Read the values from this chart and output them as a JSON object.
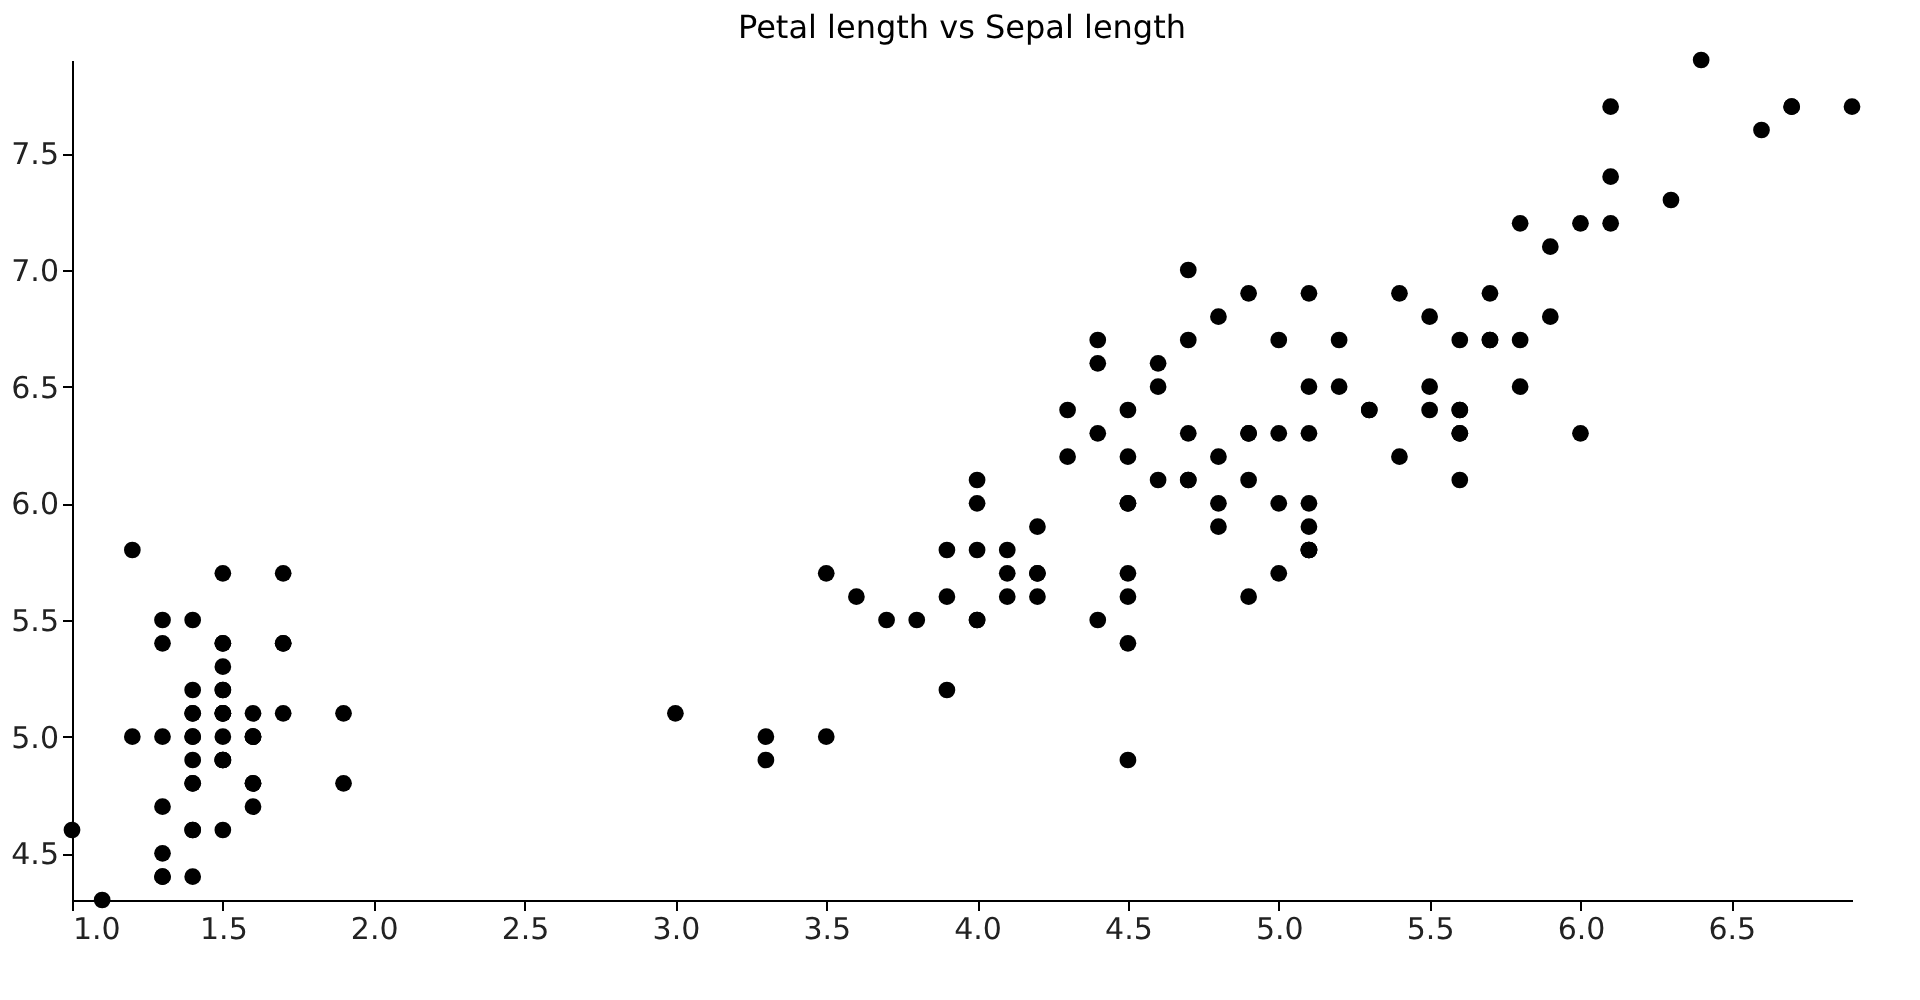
{
  "chart_data": {
    "type": "scatter",
    "title": "Petal length vs Sepal length",
    "x": [
      1.4,
      1.4,
      1.3,
      1.5,
      1.4,
      1.7,
      1.4,
      1.5,
      1.4,
      1.5,
      1.5,
      1.6,
      1.4,
      1.1,
      1.2,
      1.5,
      1.3,
      1.4,
      1.7,
      1.5,
      1.7,
      1.5,
      1.0,
      1.7,
      1.9,
      1.6,
      1.6,
      1.5,
      1.4,
      1.6,
      1.6,
      1.5,
      1.5,
      1.4,
      1.5,
      1.2,
      1.3,
      1.5,
      1.3,
      1.5,
      1.3,
      1.3,
      1.3,
      1.6,
      1.9,
      1.4,
      1.6,
      1.4,
      1.5,
      1.4,
      4.7,
      4.5,
      4.9,
      4.0,
      4.6,
      4.5,
      4.7,
      3.3,
      4.6,
      3.9,
      3.5,
      4.2,
      4.0,
      4.7,
      3.6,
      4.4,
      4.5,
      4.1,
      4.5,
      3.9,
      4.8,
      4.0,
      4.9,
      4.7,
      4.3,
      4.4,
      4.8,
      5.0,
      4.5,
      3.5,
      3.8,
      3.7,
      3.9,
      5.1,
      4.5,
      4.5,
      4.7,
      4.4,
      4.1,
      4.0,
      4.4,
      4.6,
      4.0,
      3.3,
      4.2,
      4.2,
      4.2,
      4.3,
      3.0,
      4.1,
      6.0,
      5.1,
      5.9,
      5.6,
      5.8,
      6.6,
      4.5,
      6.3,
      5.8,
      6.1,
      5.1,
      5.3,
      5.5,
      5.0,
      5.1,
      5.3,
      5.5,
      6.7,
      6.9,
      5.0,
      5.7,
      4.9,
      6.7,
      4.9,
      5.7,
      6.0,
      4.8,
      4.9,
      5.6,
      5.8,
      6.1,
      6.4,
      5.6,
      5.1,
      5.6,
      6.1,
      5.6,
      5.5,
      4.8,
      5.4,
      5.6,
      5.1,
      5.1,
      5.9,
      5.7,
      5.2,
      5.0,
      5.2,
      5.4,
      5.1
    ],
    "values": [
      5.1,
      4.9,
      4.7,
      4.6,
      5.0,
      5.4,
      4.6,
      5.0,
      4.4,
      4.9,
      5.4,
      4.8,
      4.8,
      4.3,
      5.8,
      5.7,
      5.4,
      5.1,
      5.7,
      5.1,
      5.4,
      5.1,
      4.6,
      5.1,
      4.8,
      5.0,
      5.0,
      5.2,
      5.2,
      4.7,
      4.8,
      5.4,
      5.2,
      5.5,
      4.9,
      5.0,
      5.5,
      4.9,
      4.4,
      5.1,
      5.0,
      4.5,
      4.4,
      5.0,
      5.1,
      4.8,
      5.1,
      4.6,
      5.3,
      5.0,
      7.0,
      6.4,
      6.9,
      5.5,
      6.5,
      5.7,
      6.3,
      4.9,
      6.6,
      5.2,
      5.0,
      5.9,
      6.0,
      6.1,
      5.6,
      6.7,
      5.6,
      5.8,
      6.2,
      5.6,
      5.9,
      6.1,
      6.3,
      6.1,
      6.4,
      6.6,
      6.8,
      6.7,
      6.0,
      5.7,
      5.5,
      5.5,
      5.8,
      6.0,
      5.4,
      6.0,
      6.7,
      6.3,
      5.6,
      5.5,
      5.5,
      6.1,
      5.8,
      5.0,
      5.6,
      5.7,
      5.7,
      6.2,
      5.1,
      5.7,
      6.3,
      5.8,
      7.1,
      6.3,
      6.5,
      7.6,
      4.9,
      7.3,
      6.7,
      7.2,
      6.5,
      6.4,
      6.8,
      5.7,
      5.8,
      6.4,
      6.5,
      7.7,
      7.7,
      6.0,
      6.9,
      5.6,
      7.7,
      6.3,
      6.7,
      7.2,
      6.2,
      6.1,
      6.4,
      7.2,
      7.4,
      7.9,
      6.4,
      6.3,
      6.1,
      7.7,
      6.3,
      6.4,
      6.0,
      6.9,
      6.7,
      6.9,
      5.8,
      6.8,
      6.7,
      6.7,
      6.3,
      6.5,
      6.2,
      5.9
    ],
    "color": "#000000",
    "marker": "circle",
    "grid": false,
    "xlim": [
      1.0,
      6.9
    ],
    "xticks": [
      {
        "value": 1,
        "label": "1.0"
      },
      1.5,
      {
        "value": 2,
        "label": "2.0"
      },
      2.5,
      {
        "value": 3,
        "label": "3.0"
      },
      3.5,
      {
        "value": 4,
        "label": "4.0"
      },
      4.5,
      {
        "value": 5,
        "label": "5.0"
      },
      5.5,
      {
        "value": 6,
        "label": "6.0"
      },
      6.5
    ],
    "ylim": [
      4.3,
      7.9
    ],
    "yticks": [
      4.5,
      {
        "value": 5,
        "label": "5.0"
      },
      5.5,
      {
        "value": 6,
        "label": "6.0"
      },
      6.5,
      {
        "value": 7,
        "label": "7.0"
      },
      7.5
    ]
  }
}
